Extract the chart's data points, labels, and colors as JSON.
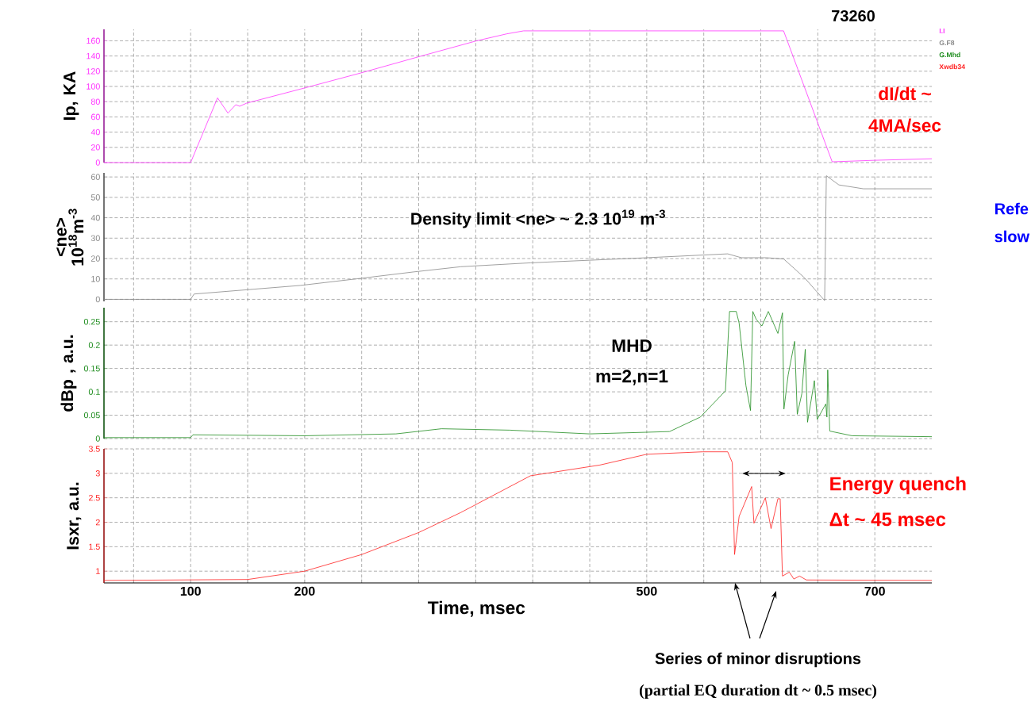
{
  "chart_data": [
    {
      "type": "line",
      "title": "73260",
      "ylabel": "Ip, KA",
      "xlim": [
        24,
        750
      ],
      "xticks": [
        {
          "value": 50,
          "label": null
        },
        100,
        {
          "value": 150,
          "label": null
        },
        200,
        {
          "value": 250,
          "label": null
        },
        {
          "value": 300,
          "label": null
        },
        {
          "value": 350,
          "label": null
        },
        {
          "value": 400,
          "label": null
        },
        {
          "value": 450,
          "label": null
        },
        500,
        {
          "value": 550,
          "label": null
        },
        {
          "value": 600,
          "label": null
        },
        {
          "value": 650,
          "label": null
        },
        700
      ],
      "ylim": [
        0,
        175
      ],
      "yticks": [
        0,
        20,
        40,
        60,
        80,
        100,
        120,
        140,
        160
      ],
      "grid": true,
      "tick_labels": "y",
      "legend": "top right",
      "series": [
        {
          "name": "I.I",
          "color": "#ff33ff",
          "x": [
            24,
            100,
            123.6,
            132.7,
            139.6,
            143,
            149,
            200,
            250,
            300,
            351,
            377,
            392,
            450,
            500,
            550,
            600,
            620,
            662.6,
            700,
            750
          ],
          "values": [
            0,
            0,
            85,
            65,
            76,
            74,
            78,
            98,
            118,
            139,
            160,
            169,
            173,
            173,
            173,
            173,
            173,
            173,
            1,
            3,
            5
          ]
        }
      ],
      "annotations": [
        "dI/dt ~",
        "4MA/sec"
      ]
    },
    {
      "type": "line",
      "ylabel": "<ne> 10$^{18}$m$^{-3}$",
      "xlim": [
        24,
        750
      ],
      "xticks": [
        {
          "value": 50,
          "label": null
        },
        {
          "value": 100,
          "label": null
        },
        {
          "value": 150,
          "label": null
        },
        {
          "value": 200,
          "label": null
        },
        {
          "value": 250,
          "label": null
        },
        {
          "value": 300,
          "label": null
        },
        {
          "value": 350,
          "label": null
        },
        {
          "value": 400,
          "label": null
        },
        {
          "value": 450,
          "label": null
        },
        {
          "value": 500,
          "label": null
        },
        {
          "value": 550,
          "label": null
        },
        {
          "value": 600,
          "label": null
        },
        {
          "value": 650,
          "label": null
        },
        {
          "value": 700,
          "label": null
        }
      ],
      "ylim": [
        -1,
        62
      ],
      "yticks": [
        0,
        10,
        20,
        30,
        40,
        50,
        60
      ],
      "grid": true,
      "tick_labels": "y",
      "legend": "top right",
      "series": [
        {
          "name": "G.F8",
          "color": "#888888",
          "x": [
            24,
            100,
            103,
            196,
            245,
            295,
            337,
            398,
            500,
            571,
            583,
            605,
            620,
            629,
            639,
            649,
            656,
            657.5,
            668.5,
            690,
            750
          ],
          "values": [
            0,
            0,
            2.6,
            6.8,
            10,
            13.4,
            16,
            17.9,
            20.4,
            22.3,
            20.4,
            20.4,
            19.8,
            15.3,
            10.2,
            3.8,
            -0.6,
            60.6,
            56.1,
            54.2,
            54.2
          ]
        }
      ],
      "annotations": [
        "Density limit  <ne> ~ 2.3 10$^{19}$ m$^{-3}$",
        "Refe",
        "slow"
      ]
    },
    {
      "type": "line",
      "ylabel": "dBp , a.u.",
      "xlim": [
        24,
        750
      ],
      "xticks": [
        {
          "value": 50,
          "label": null
        },
        {
          "value": 100,
          "label": null
        },
        {
          "value": 150,
          "label": null
        },
        {
          "value": 200,
          "label": null
        },
        {
          "value": 250,
          "label": null
        },
        {
          "value": 300,
          "label": null
        },
        {
          "value": 350,
          "label": null
        },
        {
          "value": 400,
          "label": null
        },
        {
          "value": 450,
          "label": null
        },
        {
          "value": 500,
          "label": null
        },
        {
          "value": 550,
          "label": null
        },
        {
          "value": 600,
          "label": null
        },
        {
          "value": 650,
          "label": null
        },
        {
          "value": 700,
          "label": null
        }
      ],
      "ylim": [
        0,
        0.28
      ],
      "yticks": [
        0,
        0.05,
        0.1,
        0.15,
        0.2,
        0.25
      ],
      "grid": true,
      "tick_labels": "y",
      "legend": "top right",
      "series": [
        {
          "name": "G.Mhd",
          "color": "#1e8c1e",
          "x": [
            24,
            100,
            102,
            200,
            280,
            320,
            380,
            450,
            520,
            547,
            569,
            572.6,
            578.5,
            581,
            587,
            591,
            593,
            596,
            601,
            606.6,
            615,
            619,
            620.3,
            624,
            629.7,
            632,
            636,
            639,
            641,
            647,
            649.5,
            657,
            658,
            658.7,
            660.5,
            680,
            750
          ],
          "values": [
            0.002,
            0.002,
            0.008,
            0.006,
            0.01,
            0.021,
            0.018,
            0.01,
            0.015,
            0.046,
            0.102,
            0.272,
            0.272,
            0.247,
            0.113,
            0.06,
            0.272,
            0.255,
            0.241,
            0.272,
            0.225,
            0.269,
            0.063,
            0.136,
            0.208,
            0.052,
            0.096,
            0.191,
            0.035,
            0.124,
            0.041,
            0.074,
            0.046,
            0.147,
            0.016,
            0.006,
            0.004
          ]
        }
      ],
      "annotations": [
        "MHD",
        "m=2,n=1"
      ]
    },
    {
      "type": "line",
      "xlabel": "Time, msec",
      "ylabel": "Isxr, a.u.",
      "xlim": [
        24,
        750
      ],
      "xticks": [
        {
          "value": 50,
          "label": null
        },
        100,
        {
          "value": 150,
          "label": null
        },
        200,
        {
          "value": 250,
          "label": null
        },
        {
          "value": 300,
          "label": null
        },
        {
          "value": 350,
          "label": null
        },
        {
          "value": 400,
          "label": null
        },
        {
          "value": 450,
          "label": null
        },
        500,
        {
          "value": 550,
          "label": null
        },
        {
          "value": 600,
          "label": null
        },
        {
          "value": 650,
          "label": null
        },
        700
      ],
      "ylim": [
        0.76,
        3.5
      ],
      "yticks": [
        1,
        1.5,
        2,
        2.5,
        3,
        3.5
      ],
      "grid": true,
      "legend": "top right",
      "series": [
        {
          "name": "Xwdb34",
          "color": "#ff2020",
          "x": [
            24,
            150,
            200,
            250,
            300,
            337,
            398,
            459,
            500,
            549,
            571,
            575,
            577,
            581,
            592,
            594,
            604,
            609,
            615,
            617,
            619,
            625,
            629,
            634,
            640,
            750
          ],
          "values": [
            0.81,
            0.83,
            1.0,
            1.34,
            1.79,
            2.2,
            2.95,
            3.17,
            3.39,
            3.44,
            3.44,
            3.22,
            1.34,
            2.12,
            2.73,
            1.98,
            2.5,
            1.87,
            2.48,
            2.48,
            0.9,
            0.98,
            0.84,
            0.9,
            0.82,
            0.81
          ]
        }
      ],
      "annotations": [
        "Energy quench",
        "Δt ~ 45 msec",
        "Series of minor disruptions",
        "(partial EQ duration dt ~ 0.5 msec)"
      ]
    }
  ]
}
